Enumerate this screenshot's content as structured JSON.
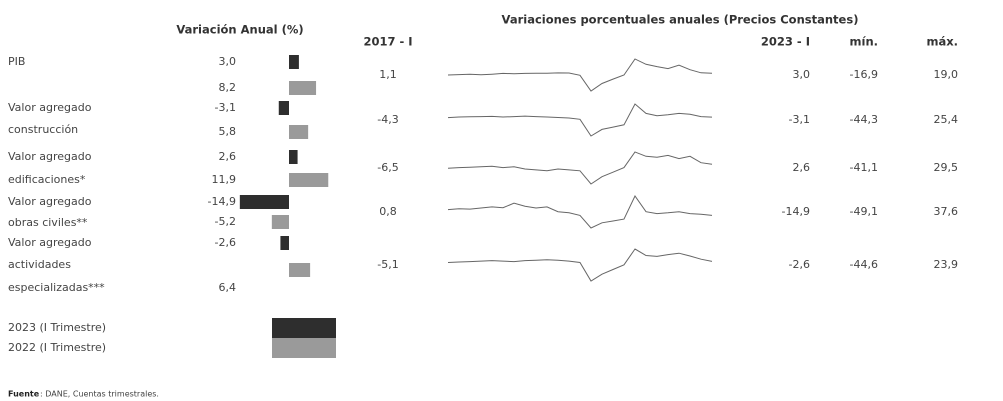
{
  "left_title": "Variación Anual (%)",
  "right_title": "Variaciones porcentuales anuales  (Precios Constantes)",
  "columns": [
    "2017 - I",
    "2023 - I",
    "mín.",
    "máx."
  ],
  "series": [
    {
      "name": "2023 (I Trimestre)",
      "color": "#2e2e2e"
    },
    {
      "name": "2022 (I Trimestre)",
      "color": "#9a9a9a"
    }
  ],
  "rows": [
    {
      "name": [
        "PIB"
      ],
      "values": [
        3.0,
        8.2
      ],
      "value_labels": [
        "3,0",
        "8,2"
      ],
      "cells": [
        "1,1",
        "3,0",
        "-16,9",
        "19,0"
      ],
      "trend": [
        1.1,
        1.5,
        1.8,
        1.3,
        2.0,
        2.8,
        2.5,
        2.9,
        3.0,
        3.1,
        3.4,
        3.3,
        0.7,
        -16.9,
        -8.5,
        -3.5,
        1.0,
        19.0,
        13.0,
        10.5,
        8.2,
        12.0,
        7.0,
        3.5,
        3.0
      ]
    },
    {
      "name": [
        "Valor agregado",
        "construcción"
      ],
      "values": [
        -3.1,
        5.8
      ],
      "value_labels": [
        "-3,1",
        "5,8"
      ],
      "cells": [
        "-4,3",
        "-3,1",
        "-44,3",
        "25,4"
      ],
      "trend": [
        -4.3,
        -3.0,
        -2.5,
        -2.0,
        -1.5,
        -3.0,
        -2.0,
        -1.0,
        -2.0,
        -3.0,
        -4.0,
        -5.0,
        -8.0,
        -44.3,
        -30.0,
        -25.0,
        -20.0,
        25.4,
        5.0,
        0.0,
        2.0,
        5.0,
        3.0,
        -2.0,
        -3.1
      ]
    },
    {
      "name": [
        "Valor agregado",
        "edificaciones*"
      ],
      "values": [
        2.6,
        11.9
      ],
      "value_labels": [
        "2,6",
        "11,9"
      ],
      "cells": [
        "-6,5",
        "2,6",
        "-41,1",
        "29,5"
      ],
      "trend": [
        -6.5,
        -5.0,
        -4.0,
        -3.0,
        -2.0,
        -5.0,
        -3.0,
        -8.0,
        -10.0,
        -12.0,
        -8.0,
        -10.0,
        -12.0,
        -41.1,
        -25.0,
        -15.0,
        -5.0,
        29.5,
        20.0,
        18.0,
        22.0,
        15.0,
        20.0,
        6.0,
        2.6
      ]
    },
    {
      "name": [
        "Valor agregado",
        "obras civiles**"
      ],
      "values": [
        -14.9,
        -5.2
      ],
      "value_labels": [
        "-14,9",
        "-5,2"
      ],
      "cells": [
        "0,8",
        "-14,9",
        "-49,1",
        "37,6"
      ],
      "trend": [
        0.8,
        3.0,
        2.0,
        5.0,
        8.0,
        6.0,
        18.0,
        10.0,
        5.0,
        8.0,
        -5.0,
        -8.0,
        -15.0,
        -49.1,
        -35.0,
        -30.0,
        -25.0,
        37.6,
        -5.0,
        -10.0,
        -8.0,
        -5.0,
        -10.0,
        -12.0,
        -14.9
      ]
    },
    {
      "name": [
        "Valor agregado",
        "actividades",
        "especializadas***"
      ],
      "values": [
        -2.6,
        6.4
      ],
      "value_labels": [
        "-2,6",
        "6,4"
      ],
      "cells": [
        "-5,1",
        "-2,6",
        "-44,6",
        "23,9"
      ],
      "trend": [
        -5.1,
        -4.0,
        -3.0,
        -2.0,
        -1.0,
        -2.0,
        -3.0,
        -1.0,
        0.0,
        1.0,
        0.0,
        -2.0,
        -5.0,
        -44.6,
        -30.0,
        -20.0,
        -10.0,
        23.9,
        10.0,
        8.0,
        12.0,
        15.0,
        9.0,
        2.0,
        -2.6
      ]
    }
  ],
  "source_label": "Fuente",
  "source": ": DANE, Cuentas trimestrales."
}
